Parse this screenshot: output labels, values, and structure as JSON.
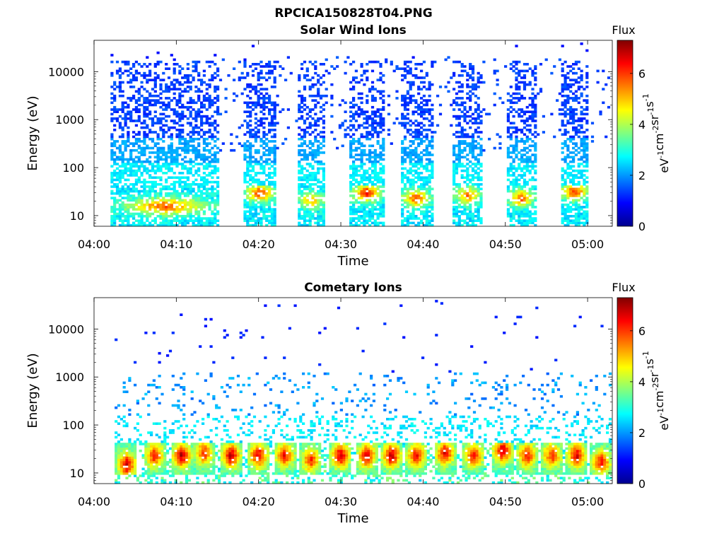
{
  "figure_title": "RPCICA150828T04.PNG",
  "chart_data": [
    {
      "type": "heatmap",
      "title": "Solar Wind Ions",
      "xlabel": "Time",
      "ylabel": "Energy (eV)",
      "x_ticks": [
        "04:00",
        "04:10",
        "04:20",
        "04:30",
        "04:40",
        "04:50",
        "05:00"
      ],
      "x_range": [
        "04:00",
        "05:03"
      ],
      "y_scale": "log",
      "y_ticks": [
        10,
        100,
        1000,
        10000
      ],
      "y_range": [
        6,
        45000
      ],
      "colorbar": {
        "title": "Flux",
        "label": "eV-1cm-2sr-1s-1",
        "ticks": [
          0,
          2,
          4,
          6
        ],
        "range": [
          0,
          7.3
        ]
      },
      "colormap": "jet",
      "bursts": [
        {
          "start": "04:02",
          "end": "04:15",
          "peak_energy": 15,
          "peak_flux": 5.8
        },
        {
          "start": "04:18",
          "end": "04:22",
          "peak_energy": 28,
          "peak_flux": 6.2
        },
        {
          "start": "04:24.5",
          "end": "04:28",
          "peak_energy": 20,
          "peak_flux": 5.2
        },
        {
          "start": "04:31",
          "end": "04:35",
          "peak_energy": 28,
          "peak_flux": 6.4
        },
        {
          "start": "04:37",
          "end": "04:41",
          "peak_energy": 22,
          "peak_flux": 5.9
        },
        {
          "start": "04:43.5",
          "end": "04:47",
          "peak_energy": 25,
          "peak_flux": 5.6
        },
        {
          "start": "04:50",
          "end": "04:53.5",
          "peak_energy": 22,
          "peak_flux": 5.8
        },
        {
          "start": "04:56.5",
          "end": "05:00",
          "peak_energy": 30,
          "peak_flux": 6.3
        }
      ]
    },
    {
      "type": "heatmap",
      "title": "Cometary Ions",
      "xlabel": "Time",
      "ylabel": "Energy (eV)",
      "x_ticks": [
        "04:00",
        "04:10",
        "04:20",
        "04:30",
        "04:40",
        "04:50",
        "05:00"
      ],
      "x_range": [
        "04:00",
        "05:03"
      ],
      "y_scale": "log",
      "y_ticks": [
        10,
        100,
        1000,
        10000
      ],
      "y_range": [
        6,
        45000
      ],
      "colorbar": {
        "title": "Flux",
        "label": "eV-1cm-2sr-1s-1",
        "ticks": [
          0,
          2,
          4,
          6
        ],
        "range": [
          0,
          7.3
        ]
      },
      "colormap": "jet",
      "bursts": [
        {
          "center": "04:03.8",
          "peak_energy": 14,
          "peak_flux": 6.8
        },
        {
          "center": "04:07.2",
          "peak_energy": 22,
          "peak_flux": 6.3
        },
        {
          "center": "04:10.5",
          "peak_energy": 22,
          "peak_flux": 7.0
        },
        {
          "center": "04:13.2",
          "peak_energy": 25,
          "peak_flux": 6.2
        },
        {
          "center": "04:16.5",
          "peak_energy": 22,
          "peak_flux": 7.0
        },
        {
          "center": "04:19.8",
          "peak_energy": 22,
          "peak_flux": 6.8
        },
        {
          "center": "04:23",
          "peak_energy": 22,
          "peak_flux": 6.4
        },
        {
          "center": "04:26.2",
          "peak_energy": 18,
          "peak_flux": 6.2
        },
        {
          "center": "04:29.8",
          "peak_energy": 22,
          "peak_flux": 7.0
        },
        {
          "center": "04:33",
          "peak_energy": 22,
          "peak_flux": 6.8
        },
        {
          "center": "04:36",
          "peak_energy": 22,
          "peak_flux": 7.0
        },
        {
          "center": "04:39",
          "peak_energy": 22,
          "peak_flux": 6.6
        },
        {
          "center": "04:42.5",
          "peak_energy": 25,
          "peak_flux": 6.7
        },
        {
          "center": "04:46",
          "peak_energy": 22,
          "peak_flux": 6.4
        },
        {
          "center": "04:49.5",
          "peak_energy": 28,
          "peak_flux": 7.0
        },
        {
          "center": "04:52.5",
          "peak_energy": 22,
          "peak_flux": 6.5
        },
        {
          "center": "04:55.5",
          "peak_energy": 22,
          "peak_flux": 6.2
        },
        {
          "center": "04:58.5",
          "peak_energy": 22,
          "peak_flux": 6.9
        },
        {
          "center": "05:01.5",
          "peak_energy": 16,
          "peak_flux": 6.5
        }
      ]
    }
  ]
}
